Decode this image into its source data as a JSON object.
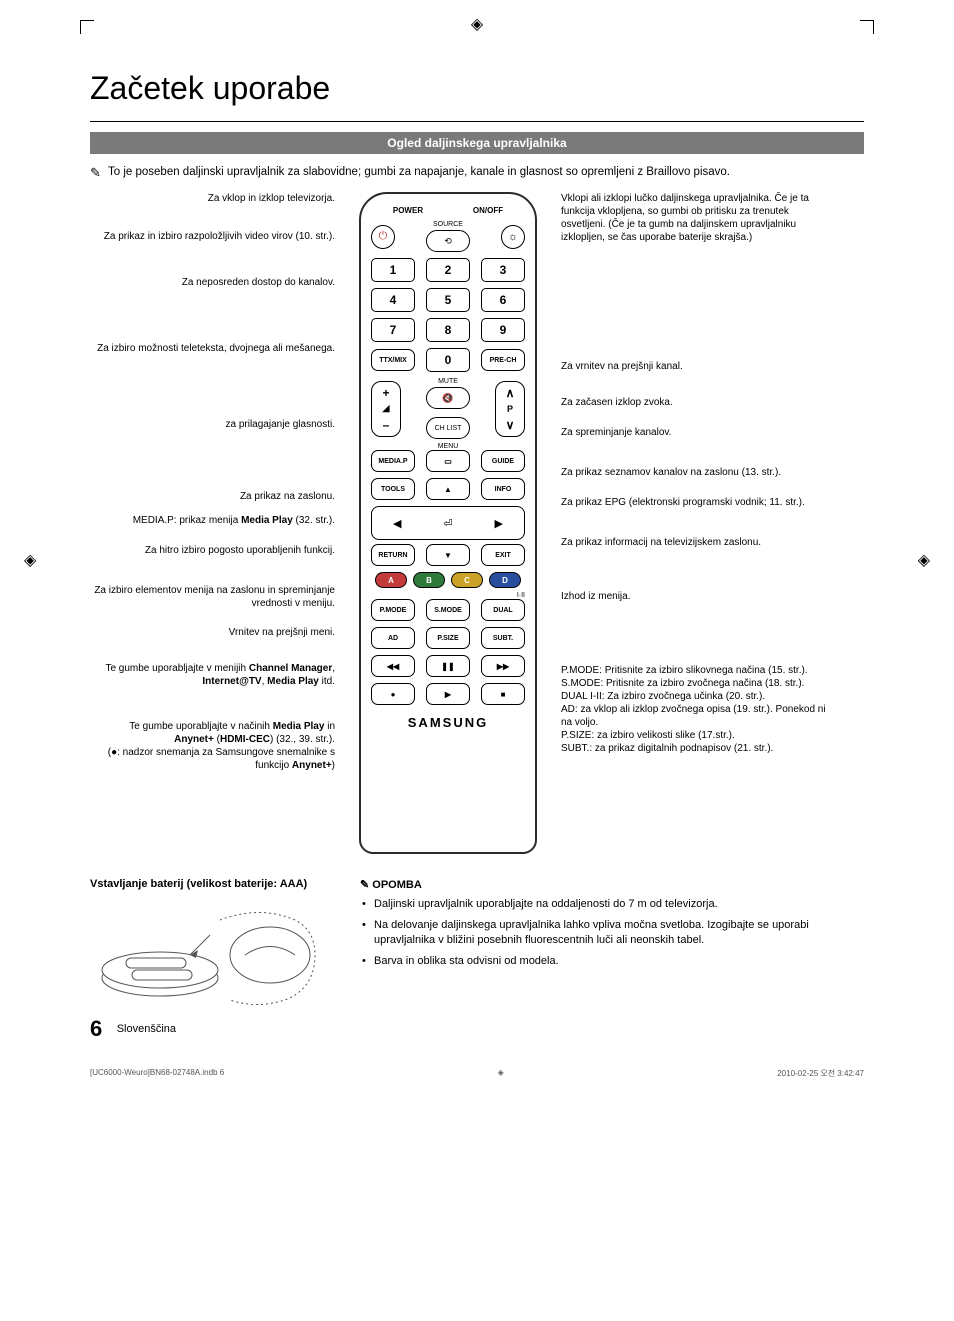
{
  "page": {
    "title": "Začetek uporabe",
    "banner": "Ogled daljinskega upravljalnika",
    "intro_note": "To je poseben daljinski upravljalnik za slabovidne; gumbi za napajanje, kanale in glasnost so opremljeni z Braillovo pisavo.",
    "page_number": "6",
    "language": "Slovenščina"
  },
  "colors": {
    "banner_bg": "#7a7a7a",
    "banner_fg": "#ffffff",
    "btn_a": "#c23a3a",
    "btn_b": "#2f7a3a",
    "btn_c": "#c9a227",
    "btn_d": "#2a4e9e",
    "remote_border": "#2b2b2b"
  },
  "left_callouts": [
    "Za vklop in izklop televizorja.",
    "Za prikaz in izbiro razpoložljivih video virov (10. str.).",
    "Za neposreden dostop do kanalov.",
    "Za izbiro možnosti teleteksta, dvojnega ali mešanega.",
    "za prilagajanje glasnosti.",
    "Za prikaz na zaslonu.",
    "MEDIA.P: prikaz menija Media Play (32. str.).",
    "Za hitro izbiro pogosto uporabljenih funkcij.",
    "Za izbiro elementov menija na zaslonu in spreminjanje vrednosti v meniju.",
    "Vrnitev na prejšnji meni.",
    "Te gumbe uporabljajte v menijih Channel Manager, Internet@TV, Media Play itd.",
    "Te gumbe uporabljajte v načinih Media Play in Anynet+ (HDMI-CEC) (32., 39. str.).\n(●: nadzor snemanja za Samsungove snemalnike s funkcijo Anynet+)"
  ],
  "right_callouts": [
    "Vklopi ali izklopi lučko daljinskega upravljalnika. Če je ta funkcija vklopljena, so gumbi ob pritisku za trenutek osvetljeni. (Če je ta gumb na daljinskem upravljalniku izklopljen, se čas uporabe baterije skrajša.)",
    "Za vrnitev na prejšnji kanal.",
    "Za začasen izklop zvoka.",
    "Za spreminjanje kanalov.",
    "Za prikaz seznamov kanalov na zaslonu (13. str.).",
    "Za prikaz EPG (elektronski programski vodnik; 11. str.).",
    "Za prikaz informacij na televizijskem zaslonu.",
    "Izhod iz menija.",
    "P.MODE: Pritisnite za izbiro slikovnega načina (15. str.).\nS.MODE: Pritisnite za izbiro zvočnega načina (18. str.).\nDUAL I-II: Za izbiro zvočnega učinka (20. str.).\nAD: za vklop ali izklop zvočnega opisa (19. str.). Ponekod ni na voljo.\nP.SIZE: za izbiro velikosti slike (17.str.).\nSUBT.: za prikaz digitalnih podnapisov (21. str.)."
  ],
  "remote": {
    "power_label": "POWER",
    "onoff_label": "ON/OFF",
    "source": "SOURCE",
    "numbers": [
      "1",
      "2",
      "3",
      "4",
      "5",
      "6",
      "7",
      "8",
      "9",
      "0"
    ],
    "ttx": "TTX/MIX",
    "prech": "PRE-CH",
    "mute": "MUTE",
    "chlist": "CH LIST",
    "menu": "MENU",
    "mediap": "MEDIA.P",
    "guide": "GUIDE",
    "tools": "TOOLS",
    "info": "INFO",
    "return": "RETURN",
    "exit": "EXIT",
    "color_labels": [
      "A",
      "B",
      "C",
      "D"
    ],
    "pmode": "P.MODE",
    "smode": "S.MODE",
    "dual": "DUAL",
    "ad": "AD",
    "psize": "P.SIZE",
    "subt": "SUBT.",
    "brand": "SAMSUNG",
    "vol_plus": "+",
    "vol_minus": "–",
    "ch_up": "∧",
    "ch_dn": "∨",
    "ch_p": "P",
    "iii": "I·II"
  },
  "battery": {
    "title": "Vstavljanje baterij (velikost baterije: AAA)",
    "notes_heading": "OPOMBA",
    "notes": [
      "Daljinski upravljalnik uporabljajte na oddaljenosti do 7 m od televizorja.",
      "Na delovanje daljinskega upravljalnika lahko vpliva močna svetloba. Izogibajte se uporabi upravljalnika v bližini posebnih fluorescentnih luči ali neonskih tabel.",
      "Barva in oblika sta odvisni od modela."
    ]
  },
  "footer": {
    "left": "[UC6000-Weuro]BN68-02748A.indb   6",
    "right": "2010-02-25   오전 3:42:47"
  },
  "spacing": {
    "left_heights": [
      38,
      46,
      66,
      76,
      72,
      24,
      30,
      40,
      42,
      36,
      58,
      90
    ],
    "right_heights": [
      168,
      36,
      30,
      40,
      30,
      40,
      54,
      74,
      190
    ]
  }
}
